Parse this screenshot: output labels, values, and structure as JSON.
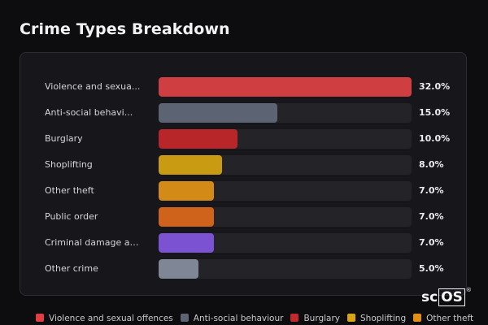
{
  "header": {
    "title": "Crime Types Breakdown"
  },
  "chart_data": {
    "type": "bar",
    "orientation": "horizontal",
    "title": "Crime Types Breakdown",
    "xlim": [
      0,
      32
    ],
    "categories": [
      "Violence and sexua...",
      "Anti-social behavi...",
      "Burglary",
      "Shoplifting",
      "Other theft",
      "Public order",
      "Criminal damage an...",
      "Other crime"
    ],
    "values": [
      32.0,
      15.0,
      10.0,
      8.0,
      7.0,
      7.0,
      7.0,
      5.0
    ],
    "value_labels": [
      "32.0%",
      "15.0%",
      "10.0%",
      "8.0%",
      "7.0%",
      "7.0%",
      "7.0%",
      "5.0%"
    ],
    "colors": [
      "#cf3f42",
      "#5c6474",
      "#b8262a",
      "#c99b13",
      "#d38a16",
      "#d0631b",
      "#7b52d2",
      "#7f8797"
    ],
    "legend": {
      "placement": "bottom",
      "entries": [
        {
          "label": "Violence and sexual offences",
          "color": "#e03e42"
        },
        {
          "label": "Anti-social behaviour",
          "color": "#5c6474"
        },
        {
          "label": "Burglary",
          "color": "#c2282c"
        },
        {
          "label": "Shoplifting",
          "color": "#d9a413"
        },
        {
          "label": "Other theft",
          "color": "#e28f16"
        }
      ]
    }
  },
  "watermark": {
    "text_plain": "sc",
    "text_boxed": "OS",
    "reg": "®"
  }
}
